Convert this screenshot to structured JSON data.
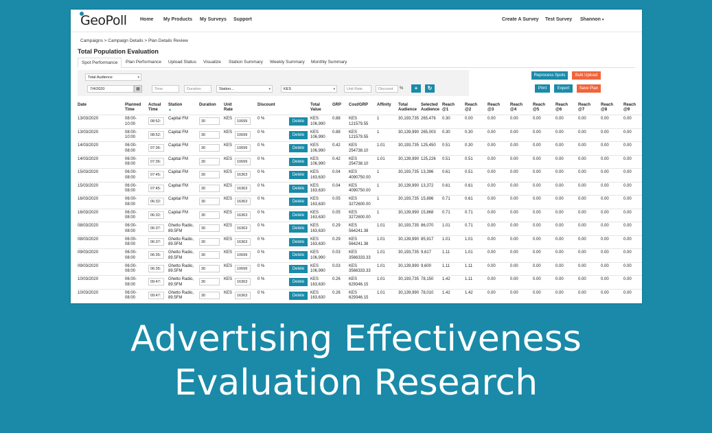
{
  "nav": {
    "logo": "GeoPoll",
    "links": [
      "Home",
      "My Products",
      "My Surveys",
      "Support"
    ],
    "right_links": [
      "Create A Survey",
      "Test Survey"
    ],
    "user": "Shannon"
  },
  "breadcrumb": "Campaigns > Campaign Details > Plan Details Review",
  "page_title": "Total Population Evaluation",
  "tabs": [
    "Spot Performance",
    "Plan Performance",
    "Upload Status",
    "Visualize",
    "Station Summary",
    "Weekly Summary",
    "Monthly Summary"
  ],
  "filters": {
    "audience": "Total Audience",
    "date": "7/4/2020",
    "time_placeholder": "Time",
    "duration_placeholder": "Duration",
    "station": "Station...",
    "currency": "KES",
    "unit_rate_placeholder": "Unit Rate",
    "discount_placeholder": "Discount",
    "percent": "%"
  },
  "actions": {
    "reprocess": "Reprocess Spots",
    "bulk_upload": "Bulk Upload",
    "print": "Print",
    "export": "Export",
    "save_plan": "Save Plan"
  },
  "icons": {
    "calendar": "calendar-icon",
    "add": "plus-icon",
    "refresh": "refresh-icon",
    "sort": "sort-asc-icon",
    "user_caret": "chevron-down-icon"
  },
  "colors": {
    "accent": "#1a8aa8",
    "orange": "#f0643c"
  },
  "table": {
    "headers": [
      "Date",
      "Planned Time",
      "Actual Time",
      "Station",
      "Duration",
      "Unit Rate",
      "Discount",
      "",
      "Total Value",
      "GRP",
      "Cost/GRP",
      "Affinity",
      "Total Audience",
      "Selected Audience",
      "Reach @1",
      "Reach @2",
      "Reach @3",
      "Reach @4",
      "Reach @5",
      "Reach @6",
      "Reach @7",
      "Reach @8",
      "Reach @9"
    ],
    "delete_label": "Delete",
    "rows": [
      {
        "date": "13/03/2020",
        "planned": "08:00-10:00",
        "actual": "08:52:",
        "station": "Capital FM",
        "duration": "30",
        "cur": "KES",
        "rate": "10699",
        "discount": "0 %",
        "total": "KES 106,990",
        "grp": "0.88",
        "cost": "KES 121579.55",
        "affinity": "1",
        "aud": "30,193,735",
        "sel": "265,476",
        "reach": [
          "0.30",
          "0.00",
          "0.00",
          "0.00",
          "0.00",
          "0.00",
          "0.00",
          "0.00",
          "0.00"
        ]
      },
      {
        "date": "13/03/2020",
        "planned": "08:00-10:00",
        "actual": "08:52:",
        "station": "Capital FM",
        "duration": "30",
        "cur": "KES",
        "rate": "10699",
        "discount": "0 %",
        "total": "KES 106,990",
        "grp": "0.88",
        "cost": "KES 121579.55",
        "affinity": "1",
        "aud": "30,139,990",
        "sel": "265,003",
        "reach": [
          "0.30",
          "0.30",
          "0.00",
          "0.00",
          "0.00",
          "0.00",
          "0.00",
          "0.00",
          "0.00"
        ]
      },
      {
        "date": "14/03/2020",
        "planned": "06:00-08:00",
        "actual": "07:36:",
        "station": "Capital FM",
        "duration": "30",
        "cur": "KES",
        "rate": "10699",
        "discount": "0 %",
        "total": "KES 106,990",
        "grp": "0.42",
        "cost": "KES 254738.10",
        "affinity": "1.01",
        "aud": "30,193,735",
        "sel": "125,450",
        "reach": [
          "0.51",
          "0.30",
          "0.00",
          "0.00",
          "0.00",
          "0.00",
          "0.00",
          "0.00",
          "0.00"
        ]
      },
      {
        "date": "14/03/2020",
        "planned": "06:00-08:00",
        "actual": "07:36:",
        "station": "Capital FM",
        "duration": "30",
        "cur": "KES",
        "rate": "10699",
        "discount": "0 %",
        "total": "KES 106,990",
        "grp": "0.42",
        "cost": "KES 254738.10",
        "affinity": "1.01",
        "aud": "30,139,990",
        "sel": "125,226",
        "reach": [
          "0.51",
          "0.51",
          "0.00",
          "0.00",
          "0.00",
          "0.00",
          "0.00",
          "0.00",
          "0.00"
        ]
      },
      {
        "date": "15/03/2020",
        "planned": "06:00-08:00",
        "actual": "07:45:",
        "station": "Capital FM",
        "duration": "30",
        "cur": "KES",
        "rate": "16363",
        "discount": "0 %",
        "total": "KES 163,630",
        "grp": "0.04",
        "cost": "KES 4090750.00",
        "affinity": "1",
        "aud": "30,193,735",
        "sel": "13,396",
        "reach": [
          "0.61",
          "0.51",
          "0.00",
          "0.00",
          "0.00",
          "0.00",
          "0.00",
          "0.00",
          "0.00"
        ]
      },
      {
        "date": "15/03/2020",
        "planned": "06:00-08:00",
        "actual": "07:45:",
        "station": "Capital FM",
        "duration": "30",
        "cur": "KES",
        "rate": "16363",
        "discount": "0 %",
        "total": "KES 163,630",
        "grp": "0.04",
        "cost": "KES 4090750.00",
        "affinity": "1",
        "aud": "30,139,990",
        "sel": "13,372",
        "reach": [
          "0.61",
          "0.61",
          "0.00",
          "0.00",
          "0.00",
          "0.00",
          "0.00",
          "0.00",
          "0.00"
        ]
      },
      {
        "date": "16/03/2020",
        "planned": "06:00-08:00",
        "actual": "06:32:",
        "station": "Capital FM",
        "duration": "30",
        "cur": "KES",
        "rate": "16363",
        "discount": "0 %",
        "total": "KES 163,630",
        "grp": "0.05",
        "cost": "KES 3272600.00",
        "affinity": "1",
        "aud": "30,193,735",
        "sel": "15,896",
        "reach": [
          "0.71",
          "0.61",
          "0.00",
          "0.00",
          "0.00",
          "0.00",
          "0.00",
          "0.00",
          "0.00"
        ]
      },
      {
        "date": "16/03/2020",
        "planned": "06:00-08:00",
        "actual": "06:32:",
        "station": "Capital FM",
        "duration": "30",
        "cur": "KES",
        "rate": "16363",
        "discount": "0 %",
        "total": "KES 163,630",
        "grp": "0.05",
        "cost": "KES 3272600.00",
        "affinity": "1",
        "aud": "30,139,990",
        "sel": "15,868",
        "reach": [
          "0.71",
          "0.71",
          "0.00",
          "0.00",
          "0.00",
          "0.00",
          "0.00",
          "0.00",
          "0.00"
        ]
      },
      {
        "date": "08/03/2020",
        "planned": "06:00-08:00",
        "actual": "06:37:",
        "station": "Ghetto Radio, 89.5FM",
        "duration": "30",
        "cur": "KES",
        "rate": "16363",
        "discount": "0 %",
        "total": "KES 163,630",
        "grp": "0.29",
        "cost": "KES 564241.38",
        "affinity": "1.01",
        "aud": "30,193,735",
        "sel": "86,070",
        "reach": [
          "1.01",
          "0.71",
          "0.00",
          "0.00",
          "0.00",
          "0.00",
          "0.00",
          "0.00",
          "0.00"
        ]
      },
      {
        "date": "08/03/2020",
        "planned": "06:00-08:00",
        "actual": "06:37:",
        "station": "Ghetto Radio, 89.5FM",
        "duration": "30",
        "cur": "KES",
        "rate": "16363",
        "discount": "0 %",
        "total": "KES 163,630",
        "grp": "0.29",
        "cost": "KES 564241.38",
        "affinity": "1.01",
        "aud": "30,139,990",
        "sel": "85,917",
        "reach": [
          "1.01",
          "1.01",
          "0.00",
          "0.00",
          "0.00",
          "0.00",
          "0.00",
          "0.00",
          "0.00"
        ]
      },
      {
        "date": "09/03/2020",
        "planned": "06:00-08:00",
        "actual": "06:35:",
        "station": "Ghetto Radio, 89.5FM",
        "duration": "30",
        "cur": "KES",
        "rate": "10699",
        "discount": "0 %",
        "total": "KES 106,990",
        "grp": "0.03",
        "cost": "KES 3566333.33",
        "affinity": "1.01",
        "aud": "30,193,735",
        "sel": "9,617",
        "reach": [
          "1.11",
          "1.01",
          "0.00",
          "0.00",
          "0.00",
          "0.00",
          "0.00",
          "0.00",
          "0.00"
        ]
      },
      {
        "date": "09/03/2020",
        "planned": "06:00-08:00",
        "actual": "06:35:",
        "station": "Ghetto Radio, 89.5FM",
        "duration": "30",
        "cur": "KES",
        "rate": "10699",
        "discount": "0 %",
        "total": "KES 106,990",
        "grp": "0.03",
        "cost": "KES 3566333.33",
        "affinity": "1.01",
        "aud": "30,139,990",
        "sel": "9,600",
        "reach": [
          "1.11",
          "1.11",
          "0.00",
          "0.00",
          "0.00",
          "0.00",
          "0.00",
          "0.00",
          "0.00"
        ]
      },
      {
        "date": "10/03/2020",
        "planned": "06:00-08:00",
        "actual": "09:47:",
        "station": "Ghetto Radio, 89.5FM",
        "duration": "30",
        "cur": "KES",
        "rate": "16363",
        "discount": "0 %",
        "total": "KES 163,630",
        "grp": "0.26",
        "cost": "KES 629346.15",
        "affinity": "1.01",
        "aud": "30,193,735",
        "sel": "78,150",
        "reach": [
          "1.42",
          "1.11",
          "0.00",
          "0.00",
          "0.00",
          "0.00",
          "0.00",
          "0.00",
          "0.00"
        ]
      },
      {
        "date": "10/03/2020",
        "planned": "06:00-08:00",
        "actual": "09:47:",
        "station": "Ghetto Radio, 89.5FM",
        "duration": "30",
        "cur": "KES",
        "rate": "16363",
        "discount": "0 %",
        "total": "KES 163,630",
        "grp": "0.26",
        "cost": "KES 629346.15",
        "affinity": "1.01",
        "aud": "30,139,990",
        "sel": "78,010",
        "reach": [
          "1.42",
          "1.42",
          "0.00",
          "0.00",
          "0.00",
          "0.00",
          "0.00",
          "0.00",
          "0.00"
        ]
      }
    ]
  },
  "caption": {
    "line1": "Advertising Effectiveness",
    "line2": "Evaluation Research"
  }
}
